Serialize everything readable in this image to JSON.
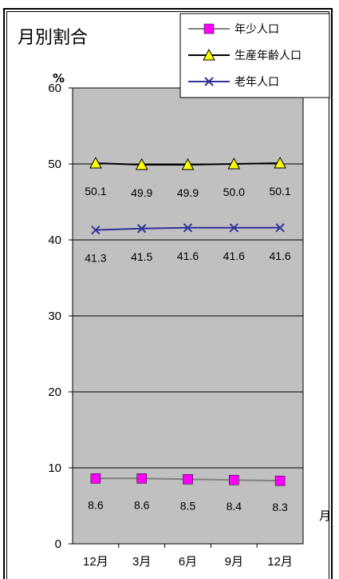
{
  "chart_data": {
    "type": "line",
    "title": "月別割合",
    "y_unit": "%",
    "x_unit": "月",
    "ylim": [
      0,
      60
    ],
    "y_ticks": [
      "0",
      "10",
      "20",
      "30",
      "40",
      "50",
      "60"
    ],
    "categories": [
      "12月",
      "3月",
      "6月",
      "9月",
      "12月"
    ],
    "series": [
      {
        "name": "年少人口",
        "values": [
          8.6,
          8.6,
          8.5,
          8.4,
          8.3
        ],
        "labels": [
          "8.6",
          "8.6",
          "8.5",
          "8.4",
          "8.3"
        ],
        "color": "#808080",
        "marker": "square",
        "marker_color": "#ff00ff"
      },
      {
        "name": "生産年齢人口",
        "values": [
          50.1,
          49.9,
          49.9,
          50.0,
          50.1
        ],
        "labels": [
          "50.1",
          "49.9",
          "49.9",
          "50.0",
          "50.1"
        ],
        "color": "#000000",
        "marker": "triangle",
        "marker_color": "#ffff00"
      },
      {
        "name": "老年人口",
        "values": [
          41.3,
          41.5,
          41.6,
          41.6,
          41.6
        ],
        "labels": [
          "41.3",
          "41.5",
          "41.6",
          "41.6",
          "41.6"
        ],
        "color": "#333399",
        "marker": "x",
        "marker_color": "#333399"
      }
    ],
    "plot_background": "#c0c0c0",
    "grid": true,
    "legend_position": "top-right"
  }
}
